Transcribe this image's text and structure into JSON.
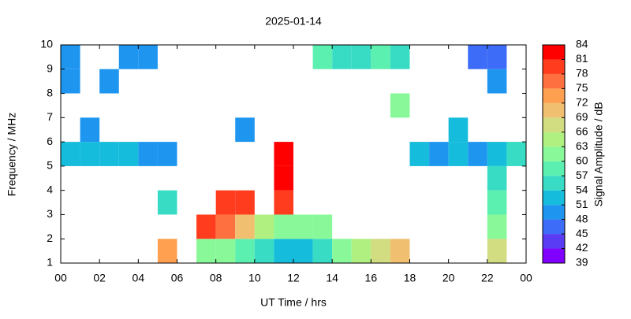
{
  "chart_data": {
    "type": "heatmap",
    "title": "2025-01-14",
    "x_label": "UT Time / hrs",
    "y_label": "Frequency / MHz",
    "colorbar_label": "Signal Amplitude / dB",
    "xlim": [
      0,
      24
    ],
    "ylim": [
      1,
      10
    ],
    "xticks": [
      {
        "value": 0,
        "label": "00"
      },
      {
        "value": 2,
        "label": "02"
      },
      {
        "value": 4,
        "label": "04"
      },
      {
        "value": 6,
        "label": "06"
      },
      {
        "value": 8,
        "label": "08"
      },
      10,
      12,
      14,
      16,
      18,
      20,
      22,
      {
        "value": 24,
        "label": "00"
      }
    ],
    "yticks": [
      1,
      2,
      3,
      4,
      5,
      6,
      7,
      8,
      9,
      10
    ],
    "x_bins": [
      0,
      1,
      2,
      3,
      4,
      5,
      6,
      7,
      8,
      9,
      10,
      11,
      12,
      13,
      14,
      15,
      16,
      17,
      18,
      19,
      20,
      21,
      22,
      23,
      24
    ],
    "y_bins": [
      1,
      2,
      3,
      4,
      5,
      6,
      7,
      8,
      9,
      10
    ],
    "z": [
      [
        null,
        null,
        null,
        null,
        null,
        72,
        null,
        60,
        62,
        58,
        55,
        52,
        52,
        55,
        62,
        65,
        68,
        70,
        null,
        null,
        null,
        null,
        68,
        null
      ],
      [
        null,
        null,
        null,
        null,
        null,
        null,
        null,
        78,
        75,
        70,
        63,
        62,
        62,
        62,
        null,
        null,
        null,
        null,
        null,
        null,
        null,
        null,
        60,
        null
      ],
      [
        null,
        null,
        null,
        null,
        null,
        54,
        null,
        null,
        78,
        78,
        null,
        80,
        null,
        null,
        null,
        null,
        null,
        null,
        null,
        null,
        null,
        null,
        57,
        null
      ],
      [
        null,
        null,
        null,
        null,
        null,
        null,
        null,
        null,
        null,
        null,
        null,
        81,
        null,
        null,
        null,
        null,
        null,
        null,
        null,
        null,
        null,
        null,
        55,
        null
      ],
      [
        52,
        51,
        52,
        51,
        50,
        50,
        null,
        null,
        null,
        null,
        null,
        82,
        null,
        null,
        null,
        null,
        null,
        null,
        51,
        50,
        52,
        50,
        52,
        55
      ],
      [
        null,
        50,
        null,
        null,
        null,
        null,
        null,
        null,
        null,
        48,
        null,
        null,
        null,
        null,
        null,
        null,
        null,
        null,
        null,
        null,
        52,
        null,
        null,
        null
      ],
      [
        null,
        null,
        null,
        null,
        null,
        null,
        null,
        null,
        null,
        null,
        null,
        null,
        null,
        null,
        null,
        null,
        null,
        60,
        null,
        null,
        null,
        null,
        null,
        null
      ],
      [
        50,
        null,
        49,
        null,
        null,
        null,
        null,
        null,
        null,
        null,
        null,
        null,
        null,
        null,
        null,
        null,
        null,
        null,
        null,
        null,
        null,
        null,
        49,
        null
      ],
      [
        48,
        null,
        null,
        48,
        49,
        null,
        null,
        null,
        null,
        null,
        null,
        null,
        null,
        57,
        56,
        56,
        58,
        56,
        null,
        null,
        null,
        45,
        46,
        null
      ]
    ],
    "clim": [
      39,
      84
    ],
    "cticks": [
      39,
      42,
      45,
      48,
      51,
      54,
      57,
      60,
      63,
      66,
      69,
      72,
      75,
      78,
      81,
      84
    ],
    "colorscale": [
      "#8000ff",
      "#5a3cf4",
      "#3c6cf8",
      "#1e96f0",
      "#16bcdc",
      "#38dcc4",
      "#5cf0b0",
      "#88f898",
      "#b0f080",
      "#d2dc80",
      "#f0c070",
      "#ffa050",
      "#ff7040",
      "#ff3c1e",
      "#ff0000"
    ]
  }
}
